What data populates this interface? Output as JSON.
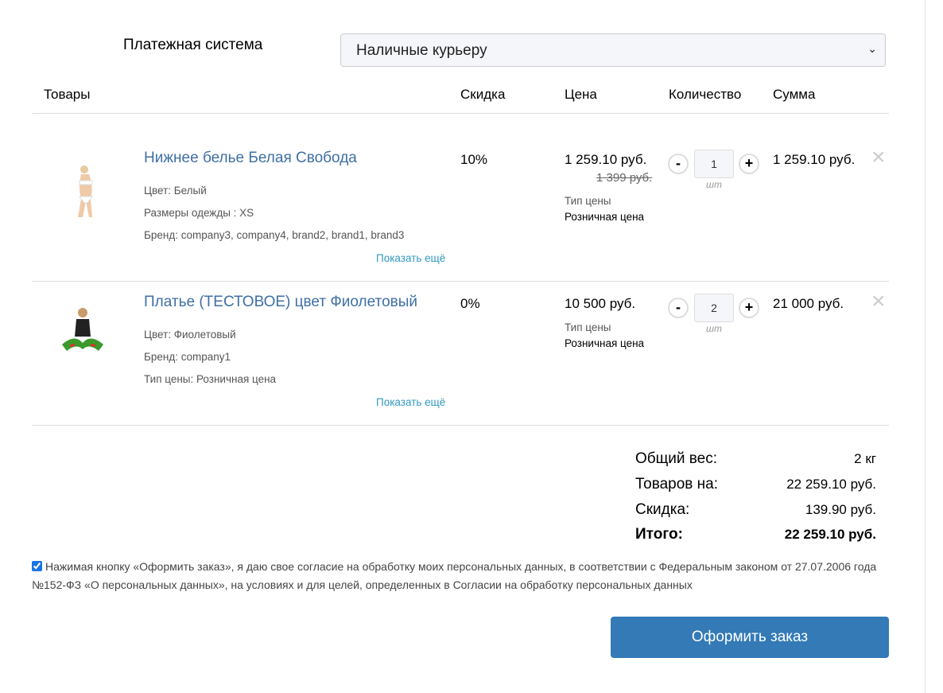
{
  "payment": {
    "label": "Платежная система",
    "selected": "Наличные курьеру"
  },
  "headers": {
    "goods": "Товары",
    "discount": "Скидка",
    "price": "Цена",
    "quantity": "Количество",
    "sum": "Сумма"
  },
  "items": [
    {
      "name": "Нижнее белье Белая Свобода",
      "props": [
        "Цвет: Белый",
        "Размеры одежды : XS",
        "Бренд: company3, company4, brand2, brand1, brand3"
      ],
      "more": "Показать ещё",
      "discount": "10%",
      "price": "1 259.10 руб.",
      "old_price": "1 399 руб.",
      "price_type_label": "Тип цены",
      "price_type": "Розничная цена",
      "qty": "1",
      "unit": "шт",
      "sum": "1 259.10 руб."
    },
    {
      "name": "Платье (ТЕСТОВОЕ) цвет Фиолетовый",
      "props": [
        "Цвет: Фиолетовый",
        "Бренд: company1",
        "Тип цены: Розничная цена"
      ],
      "more": "Показать ещё",
      "discount": "0%",
      "price": "10 500 руб.",
      "price_type_label": "Тип цены",
      "price_type": "Розничная цена",
      "qty": "2",
      "unit": "шт",
      "sum": "21 000 руб."
    }
  ],
  "controls": {
    "minus": "-",
    "plus": "+",
    "remove": "×"
  },
  "totals": {
    "weight_label": "Общий вес:",
    "weight": "2 кг",
    "goods_label": "Товаров на:",
    "goods": "22 259.10 руб.",
    "discount_label": "Скидка:",
    "discount": "139.90 руб.",
    "total_label": "Итого:",
    "total": "22 259.10 руб."
  },
  "consent": {
    "checked": true,
    "text": "Нажимая кнопку «Оформить заказ», я даю свое согласие на обработку моих персональных данных, в соответствии с Федеральным законом от 27.07.2006 года №152-ФЗ «О персональных данных», на условиях и для целей, определенных в Согласии на обработку персональных данных"
  },
  "submit": "Оформить заказ",
  "colors": {
    "accent": "#337ab7",
    "link": "#3f6fa6"
  }
}
